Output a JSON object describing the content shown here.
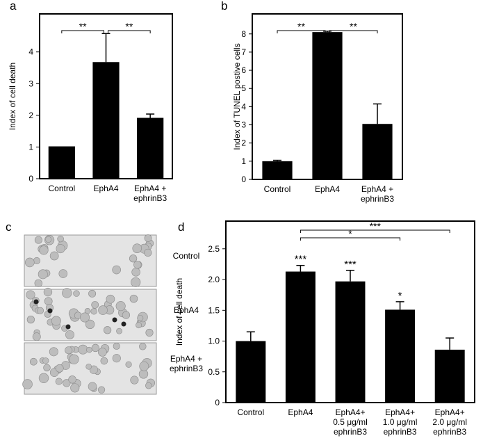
{
  "chart_data": [
    {
      "type": "bar",
      "panel": "a",
      "y_label": "Index of cell death",
      "categories": [
        [
          "Control"
        ],
        [
          "EphA4"
        ],
        [
          "EphA4 +",
          "ephrinB3"
        ]
      ],
      "values": [
        1.02,
        3.68,
        1.92
      ],
      "errors": [
        0,
        0.9,
        0.12
      ],
      "color": "#000000",
      "ylim": [
        0,
        5.2
      ],
      "yticks": [
        0,
        1,
        2,
        3,
        4
      ],
      "brackets": [
        {
          "from": 0,
          "to": 1,
          "label": "**"
        },
        {
          "from": 1,
          "to": 2,
          "label": "**"
        }
      ]
    },
    {
      "type": "bar",
      "panel": "b",
      "y_label": "Index of TUNEL postive cells",
      "categories": [
        [
          "Control"
        ],
        [
          "EphA4"
        ],
        [
          "EphA4 +",
          "ephrinB3"
        ]
      ],
      "values": [
        1.0,
        8.1,
        3.05
      ],
      "errors": [
        0.05,
        0.05,
        1.1
      ],
      "color": "#000000",
      "ylim": [
        0,
        9.1
      ],
      "yticks": [
        0,
        1,
        2,
        3,
        4,
        5,
        6,
        7,
        8
      ],
      "brackets": [
        {
          "from": 0,
          "to": 1,
          "label": "**"
        },
        {
          "from": 1,
          "to": 2,
          "label": "**"
        }
      ]
    },
    {
      "type": "bar",
      "panel": "d",
      "y_label": "Index of cell death",
      "categories": [
        [
          "Control"
        ],
        [
          "EphA4"
        ],
        [
          "EphA4+",
          "0.5 μg/ml",
          "ephrinB3"
        ],
        [
          "EphA4+",
          "1.0 μg/ml",
          "ephrinB3"
        ],
        [
          "EphA4+",
          "2.0 μg/ml",
          "ephrinB3"
        ]
      ],
      "values": [
        1.0,
        2.13,
        1.97,
        1.51,
        0.86
      ],
      "errors": [
        0.15,
        0.1,
        0.18,
        0.13,
        0.19
      ],
      "color": "#000000",
      "value_annotations": [
        null,
        "***",
        "***",
        "*",
        null
      ],
      "ylim": [
        0,
        2.95
      ],
      "yticks": [
        0,
        0.5,
        {
          "value": 1,
          "label": "1.0"
        },
        1.5,
        {
          "value": 2,
          "label": "2.0"
        },
        2.5
      ],
      "brackets": [
        {
          "from": 1,
          "to": 3,
          "label": "*"
        },
        {
          "from": 1,
          "to": 4,
          "label": "***"
        }
      ]
    }
  ],
  "micrographs": {
    "panel": "c",
    "labels": [
      [
        "Control"
      ],
      [
        "EphA4"
      ],
      [
        "EphA4 +",
        "ephrinB3"
      ]
    ]
  }
}
